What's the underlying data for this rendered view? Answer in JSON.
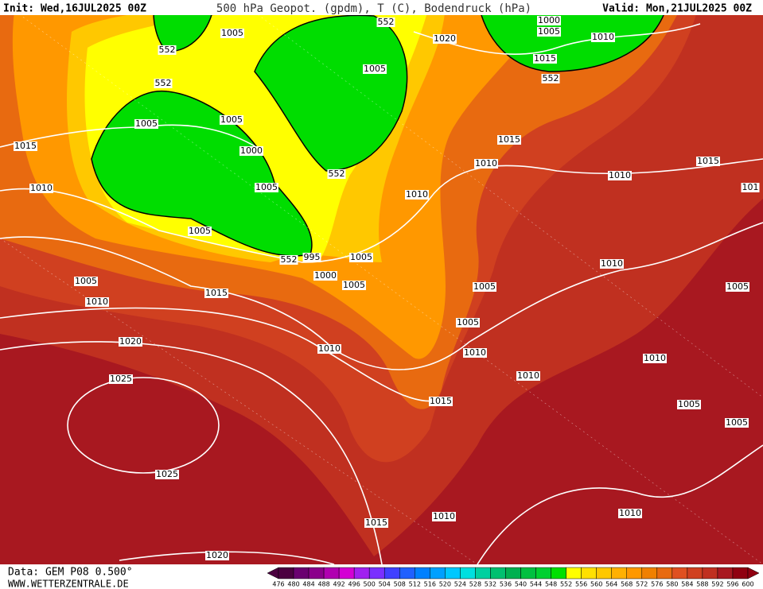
{
  "header": {
    "init": "Init: Wed,16JUL2025 00Z",
    "title": "500 hPa Geopot. (gpdm), T (C), Bodendruck (hPa)",
    "valid": "Valid: Mon,21JUL2025 00Z"
  },
  "footer": {
    "source": "Data: GEM P08 0.500°",
    "site": "WWW.WETTERZENTRALE.DE"
  },
  "colorbar": {
    "labels": [
      476,
      480,
      484,
      488,
      492,
      496,
      500,
      504,
      508,
      512,
      516,
      520,
      524,
      528,
      532,
      536,
      540,
      544,
      548,
      552,
      556,
      560,
      564,
      568,
      572,
      576,
      580,
      584,
      588,
      592,
      596,
      600
    ],
    "colors": [
      "#4b0040",
      "#6a0070",
      "#8b008b",
      "#b000b0",
      "#d400d4",
      "#a020f0",
      "#7a30ff",
      "#4040ff",
      "#2060ff",
      "#0080ff",
      "#00a0ff",
      "#00c8ff",
      "#00e0e0",
      "#00d0a0",
      "#00c070",
      "#00b050",
      "#00c040",
      "#00d030",
      "#00e000",
      "#ffff00",
      "#ffe000",
      "#ffc800",
      "#ffb000",
      "#ff9800",
      "#f08000",
      "#e86a10",
      "#e05020",
      "#d04020",
      "#c03020",
      "#a81820",
      "#900010"
    ]
  },
  "map": {
    "isobar_labels": [
      "552",
      "1005",
      "1000",
      "1005",
      "1010",
      "1020",
      "552",
      "1015",
      "1005",
      "552",
      "552",
      "1005",
      "1005",
      "1015",
      "1015",
      "1000",
      "1010",
      "1015",
      "1010",
      "552",
      "1010",
      "1005",
      "1010",
      "101",
      "1005",
      "995",
      "552",
      "1005",
      "1010",
      "1005",
      "1000",
      "1005",
      "1005",
      "1005",
      "1015",
      "1010",
      "1005",
      "1020",
      "1010",
      "1010",
      "1010",
      "1010",
      "1025",
      "1015",
      "1005",
      "1005",
      "1025",
      "1010",
      "1010",
      "1015",
      "1020"
    ]
  }
}
